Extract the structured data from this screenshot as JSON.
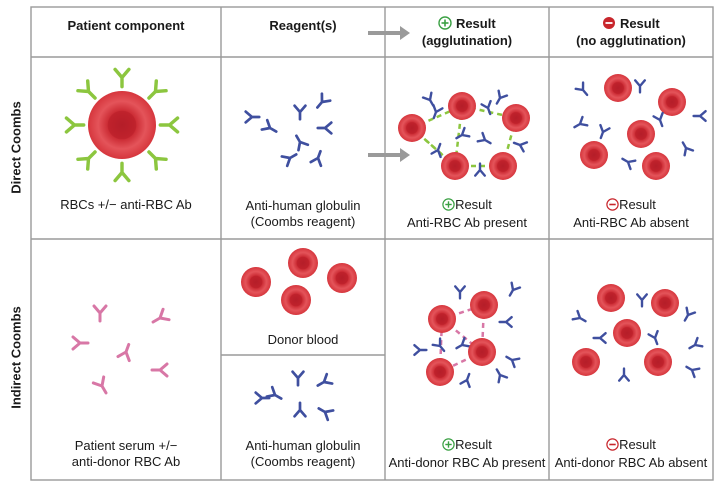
{
  "headers": {
    "patient_component": "Patient component",
    "reagents": "Reagent(s)",
    "positive_result_1": "Result",
    "positive_result_2": "(agglutination)",
    "negative_result_1": "Result",
    "negative_result_2": "(no agglutination)"
  },
  "rows": {
    "direct": {
      "label": "Direct Coombs",
      "patient": "RBCs +/− anti-RBC Ab",
      "reagent_1": "Anti-human globulin",
      "reagent_2": "(Coombs reagent)",
      "positive_1": "Result",
      "positive_2": "Anti-RBC Ab present",
      "negative_1": "Result",
      "negative_2": "Anti-RBC Ab absent"
    },
    "indirect": {
      "label": "Indirect Coombs",
      "patient_1": "Patient serum +/−",
      "patient_2": "anti-donor RBC Ab",
      "donor": "Donor blood",
      "reagent_1": "Anti-human globulin",
      "reagent_2": "(Coombs reagent)",
      "positive_1": "Result",
      "positive_2": "Anti-donor RBC Ab present",
      "negative_1": "Result",
      "negative_2": "Anti-donor RBC Ab absent"
    }
  },
  "colors": {
    "grid": "#9a9a9a",
    "rbc": "#d83a3f",
    "rbc_center": "#b81f2a",
    "anti_rbc_ab": "#8cc63f",
    "anti_human_globulin": "#3f4f9f",
    "anti_donor_ab": "#d877a6",
    "arrow": "#9a9a9a",
    "positive_symbol": "#3aa043",
    "negative_symbol": "#c8262c"
  }
}
